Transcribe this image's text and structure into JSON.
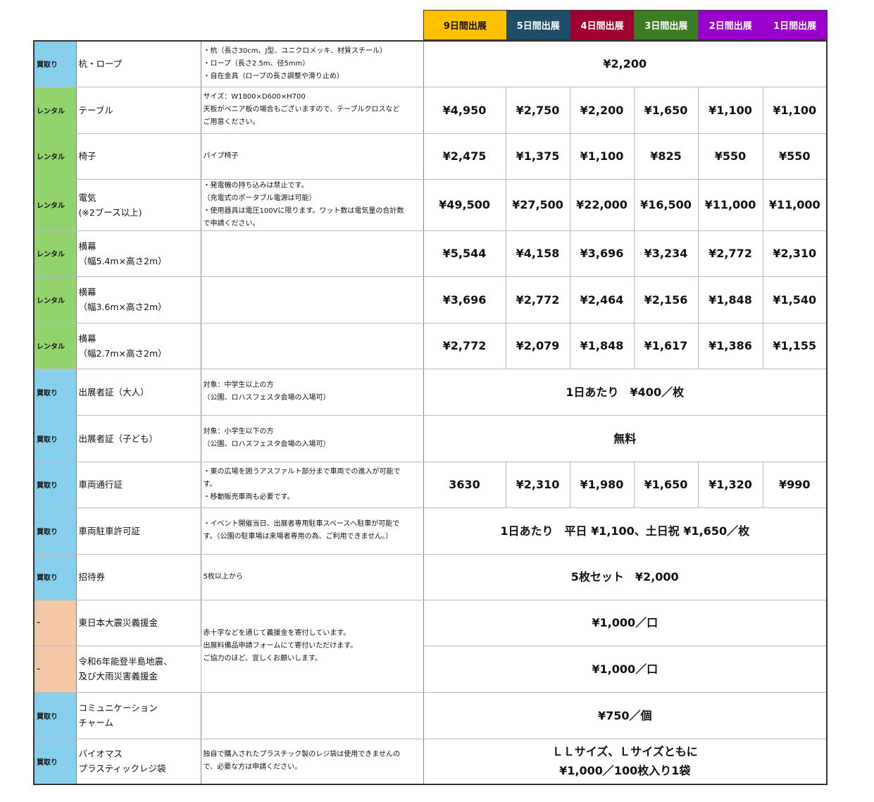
{
  "colors": {
    "buy": "#87ceeb",
    "rental": "#92d36e",
    "donation": "#f4c7a8"
  },
  "columns": [
    {
      "label": "9日間出展",
      "bg": "#ffc000",
      "fg": "#111111"
    },
    {
      "label": "5日間出展",
      "bg": "#1f4e69",
      "fg": "#ffffff"
    },
    {
      "label": "4日間出展",
      "bg": "#a00030",
      "fg": "#ffffff"
    },
    {
      "label": "3日間出展",
      "bg": "#3a7d22",
      "fg": "#ffffff"
    },
    {
      "label": "2日間出展",
      "bg": "#9900cc",
      "fg": "#ffffff"
    },
    {
      "label": "1日間出展",
      "bg": "#9900cc",
      "fg": "#ffffff"
    }
  ],
  "rows": [
    {
      "type": "買取り",
      "kind": "buy",
      "name": [
        "杭・ロープ"
      ],
      "desc": [
        "・杭（長さ30cm、J型、ユニクロメッキ、材質スチール）",
        "・ロープ（長さ2.5m、径5mm）",
        "・自在金具（ロープの長さ調整や滑り止め）"
      ],
      "merged": [
        "¥2,200"
      ]
    },
    {
      "type": "レンタル",
      "kind": "rental",
      "name": [
        "テーブル"
      ],
      "desc": [
        "サイズ：W1800×D600×H700",
        "天板がベニア板の場合もございますので、テーブルクロスなど",
        "ご用意ください。"
      ],
      "prices": [
        "¥4,950",
        "¥2,750",
        "¥2,200",
        "¥1,650",
        "¥1,100",
        "¥1,100"
      ]
    },
    {
      "type": "レンタル",
      "kind": "rental",
      "name": [
        "椅子"
      ],
      "desc": [
        "パイプ椅子"
      ],
      "prices": [
        "¥2,475",
        "¥1,375",
        "¥1,100",
        "¥825",
        "¥550",
        "¥550"
      ]
    },
    {
      "type": "レンタル",
      "kind": "rental",
      "name": [
        "電気",
        "(※2ブース以上)"
      ],
      "desc": [
        "・発電機の持ち込みは禁止です。",
        "（充電式のポータブル電源は可能）",
        "・使用器具は電圧100Vに限ります。ワット数は電気量の合計数",
        "で申請ください。"
      ],
      "prices": [
        "¥49,500",
        "¥27,500",
        "¥22,000",
        "¥16,500",
        "¥11,000",
        "¥11,000"
      ]
    },
    {
      "type": "レンタル",
      "kind": "rental",
      "name": [
        "横幕",
        "（幅5.4m×高さ2m）"
      ],
      "desc": [],
      "prices": [
        "¥5,544",
        "¥4,158",
        "¥3,696",
        "¥3,234",
        "¥2,772",
        "¥2,310"
      ]
    },
    {
      "type": "レンタル",
      "kind": "rental",
      "name": [
        "横幕",
        "（幅3.6m×高さ2m）"
      ],
      "desc": [],
      "prices": [
        "¥3,696",
        "¥2,772",
        "¥2,464",
        "¥2,156",
        "¥1,848",
        "¥1,540"
      ]
    },
    {
      "type": "レンタル",
      "kind": "rental",
      "name": [
        "横幕",
        "（幅2.7m×高さ2m）"
      ],
      "desc": [],
      "prices": [
        "¥2,772",
        "¥2,079",
        "¥1,848",
        "¥1,617",
        "¥1,386",
        "¥1,155"
      ]
    },
    {
      "type": "買取り",
      "kind": "buy",
      "name": [
        "出展者証（大人）"
      ],
      "desc": [
        "対象：中学生以上の方",
        "（公園、ロハスフェスタ会場の入場可）"
      ],
      "merged": [
        "1日あたり　¥400／枚"
      ]
    },
    {
      "type": "買取り",
      "kind": "buy",
      "name": [
        "出展者証（子ども）"
      ],
      "desc": [
        "対象：小学生以下の方",
        "（公園、ロハスフェスタ会場の入場可）"
      ],
      "merged": [
        "無料"
      ]
    },
    {
      "type": "買取り",
      "kind": "buy",
      "name": [
        "車両通行証"
      ],
      "desc": [
        "・東の広場を囲うアスファルト部分まで車両での進入が可能で",
        "す。",
        "・移動販売車両も必要です。"
      ],
      "prices": [
        "3630",
        "¥2,310",
        "¥1,980",
        "¥1,650",
        "¥1,320",
        "¥990"
      ]
    },
    {
      "type": "買取り",
      "kind": "buy",
      "name": [
        "車両駐車許可証"
      ],
      "desc": [
        "・イベント開催当日、出展者専用駐車スペースへ駐車が可能で",
        "す。（公園の駐車場は来場者専用の為、ご利用できません。）"
      ],
      "merged": [
        "1日あたり　平日 ¥1,100、土日祝 ¥1,650／枚"
      ]
    },
    {
      "type": "買取り",
      "kind": "buy",
      "name": [
        "招待券"
      ],
      "desc": [
        "5枚以上から"
      ],
      "merged": [
        "5枚セット　¥2,000"
      ]
    },
    {
      "type": "–",
      "kind": "donation",
      "name": [
        "東日本大震災義援金"
      ],
      "desc": [
        "赤十字などを通じて義援金を寄付しています。",
        "出展料備品申請フォームにて寄付いただけます。",
        "ご協力のほど、宜しくお願いします。"
      ],
      "descSpan": 2,
      "merged": [
        "¥1,000／口"
      ]
    },
    {
      "type": "–",
      "kind": "donation",
      "name": [
        "令和6年能登半島地震、",
        "及び大雨災害義援金"
      ],
      "descSkip": true,
      "merged": [
        "¥1,000／口"
      ]
    },
    {
      "type": "買取り",
      "kind": "buy",
      "name": [
        "コミュニケーション",
        "チャーム"
      ],
      "desc": [],
      "merged": [
        "¥750／個"
      ]
    },
    {
      "type": "買取り",
      "kind": "buy",
      "name": [
        "バイオマス",
        "プラスティックレジ袋"
      ],
      "desc": [
        "独自で購入されたプラスチック製のレジ袋は使用できませんの",
        "で、必要な方は申請ください。"
      ],
      "merged": [
        "ＬＬサイズ、Ｌサイズともに",
        "¥1,000／100枚入り1袋"
      ]
    }
  ]
}
